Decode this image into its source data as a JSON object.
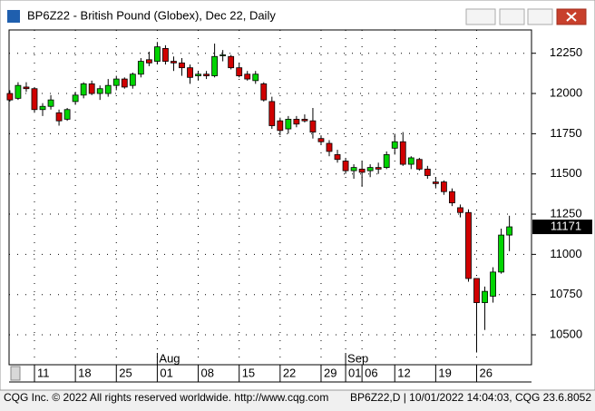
{
  "window_title": "BP6Z22 - British Pound (Globex), Dec 22, Daily",
  "footer_left": "CQG Inc. © 2022 All rights reserved worldwide. http://www.cqg.com",
  "footer_right": "BP6Z22,D | 10/01/2022 14:04:03, CQG 23.6.8052",
  "chart_data": {
    "type": "candlestick",
    "open": [
      12000,
      11970,
      12040,
      12030,
      11900,
      11920,
      11880,
      11840,
      11950,
      11990,
      12060,
      12000,
      12000,
      12050,
      12090,
      12050,
      12120,
      12210,
      12200,
      12280,
      12200,
      12190,
      12160,
      12110,
      12120,
      12110,
      12240,
      12230,
      12160,
      12120,
      12080,
      12060,
      11950,
      11830,
      11780,
      11840,
      11840,
      11830,
      11720,
      11690,
      11620,
      11580,
      11520,
      11530,
      11520,
      11540,
      11540,
      11660,
      11700,
      11560,
      11590,
      11530,
      11450,
      11450,
      11390,
      11290,
      11260,
      10850,
      10700,
      10740,
      10890,
      11120
    ],
    "high": [
      12020,
      12070,
      12070,
      12040,
      11940,
      11990,
      11900,
      11910,
      12010,
      12070,
      12080,
      12050,
      12090,
      12110,
      12100,
      12130,
      12220,
      12260,
      12320,
      12300,
      12230,
      12220,
      12180,
      12140,
      12140,
      12310,
      12270,
      12240,
      12190,
      12140,
      12140,
      12070,
      11980,
      11850,
      11860,
      11860,
      11870,
      11910,
      11740,
      11710,
      11650,
      11600,
      11560,
      11580,
      11560,
      11570,
      11640,
      11750,
      11760,
      11610,
      11600,
      11550,
      11480,
      11460,
      11410,
      11310,
      11280,
      10850,
      10800,
      10920,
      11160,
      11240
    ],
    "low": [
      11950,
      11960,
      12010,
      11880,
      11860,
      11900,
      11800,
      11830,
      11930,
      11970,
      11990,
      11960,
      11980,
      12020,
      12030,
      12030,
      12100,
      12170,
      12180,
      12180,
      12140,
      12110,
      12060,
      12080,
      12090,
      12100,
      12200,
      12150,
      12100,
      12080,
      12060,
      11950,
      11780,
      11740,
      11750,
      11790,
      11820,
      11720,
      11680,
      11610,
      11570,
      11500,
      11470,
      11420,
      11480,
      11500,
      11530,
      11620,
      11550,
      11530,
      11520,
      11470,
      11410,
      11370,
      11300,
      11230,
      10830,
      10390,
      10530,
      10700,
      10880,
      11020
    ],
    "close": [
      11960,
      12050,
      12030,
      11900,
      11920,
      11960,
      11830,
      11900,
      11990,
      12060,
      12000,
      12030,
      12050,
      12090,
      12040,
      12120,
      12200,
      12190,
      12290,
      12200,
      12190,
      12160,
      12100,
      12120,
      12110,
      12230,
      12240,
      12160,
      12110,
      12090,
      12120,
      11960,
      11800,
      11770,
      11840,
      11810,
      11830,
      11760,
      11700,
      11640,
      11590,
      11520,
      11540,
      11510,
      11540,
      11530,
      11620,
      11700,
      11560,
      11600,
      11530,
      11490,
      11440,
      11390,
      11320,
      11260,
      10850,
      10700,
      10770,
      10890,
      11120,
      11171
    ],
    "up_color": "#00d400",
    "down_color": "#d00000",
    "xlim": [
      -0.1,
      63.7
    ],
    "xticks": [
      {
        "value": 3,
        "label": "11"
      },
      {
        "value": 8,
        "label": "18"
      },
      {
        "value": 13,
        "label": "25"
      },
      {
        "value": 18,
        "label": "01"
      },
      {
        "value": 23,
        "label": "08"
      },
      {
        "value": 28,
        "label": "15"
      },
      {
        "value": 33,
        "label": "22"
      },
      {
        "value": 38,
        "label": "29"
      },
      {
        "value": 41,
        "label": "01"
      },
      {
        "value": 43,
        "label": "06"
      },
      {
        "value": 47,
        "label": "12"
      },
      {
        "value": 52,
        "label": "19"
      },
      {
        "value": 57,
        "label": "26"
      }
    ],
    "month_ticks": [
      {
        "value": 18,
        "label": "Aug"
      },
      {
        "value": 41,
        "label": "Sep"
      }
    ],
    "ylim": [
      10314,
      12395
    ],
    "yticks": [
      10500,
      10750,
      11000,
      11250,
      11500,
      11750,
      12000,
      12250
    ],
    "grid": true
  }
}
